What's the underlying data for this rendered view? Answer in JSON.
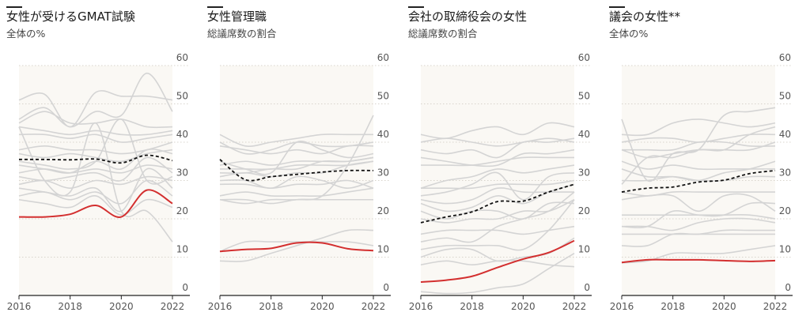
{
  "chart_data": [
    {
      "type": "line",
      "title": "女性が受けるGMAT試験",
      "subtitle": "全体の%",
      "x": [
        2016,
        2017,
        2018,
        2019,
        2020,
        2021,
        2022
      ],
      "xticks": [
        "2016",
        "2018",
        "2020",
        "2022"
      ],
      "yticks": [
        "0",
        "10",
        "20",
        "30",
        "40",
        "50",
        "60"
      ],
      "ylim": [
        0,
        60
      ],
      "highlight": [
        20.5,
        20.5,
        21.2,
        23.5,
        20.5,
        27.5,
        24
      ],
      "average": [
        35.5,
        35.5,
        35.4,
        35.6,
        34.6,
        36.6,
        35.2
      ],
      "others": [
        [
          51,
          52.5,
          44,
          53,
          52,
          52,
          51
        ],
        [
          46,
          49,
          44,
          48,
          47,
          58,
          48
        ],
        [
          45,
          48,
          45,
          45,
          46,
          44,
          44
        ],
        [
          44,
          43,
          42,
          43,
          42,
          42,
          43
        ],
        [
          42,
          42,
          41,
          42,
          40,
          41,
          42
        ],
        [
          38,
          39,
          38,
          38,
          37,
          38,
          40
        ],
        [
          37,
          36,
          37,
          36,
          35,
          37,
          38
        ],
        [
          34,
          33,
          32,
          35,
          33,
          38,
          37
        ],
        [
          32,
          33,
          32,
          33,
          32,
          34,
          33
        ],
        [
          31,
          30,
          31,
          32,
          30,
          36,
          32
        ],
        [
          29,
          30,
          28,
          30,
          29,
          31,
          30
        ],
        [
          28,
          27,
          26,
          28,
          22,
          33,
          28
        ],
        [
          26,
          27,
          25,
          27,
          24,
          30,
          26
        ],
        [
          25,
          24,
          23,
          26,
          21,
          25,
          23
        ],
        [
          44,
          30,
          27,
          45,
          22,
          22,
          14
        ],
        [
          35,
          34,
          33,
          35,
          46,
          30,
          31
        ]
      ]
    },
    {
      "type": "line",
      "title": "女性管理職",
      "subtitle": "総議席数の割合",
      "x": [
        2016,
        2017,
        2018,
        2019,
        2020,
        2021,
        2022
      ],
      "xticks": [
        "2016",
        "2018",
        "2020",
        "2022"
      ],
      "yticks": [
        "0",
        "10",
        "20",
        "30",
        "40",
        "50",
        "60"
      ],
      "ylim": [
        0,
        60
      ],
      "highlight": [
        11.5,
        12,
        12.3,
        13.7,
        13.7,
        12.2,
        11.7
      ],
      "average": [
        35.5,
        30.2,
        31,
        31.6,
        32.2,
        32.6,
        32.6
      ],
      "others": [
        [
          42,
          39,
          40,
          41,
          42,
          42,
          42
        ],
        [
          40,
          37,
          38,
          40,
          39,
          39,
          40
        ],
        [
          39,
          38,
          37,
          38,
          37,
          39,
          39
        ],
        [
          35,
          33,
          32,
          40,
          38,
          36,
          37
        ],
        [
          34,
          35,
          34,
          35,
          35,
          35,
          36
        ],
        [
          33,
          33,
          33,
          34,
          34,
          34,
          35
        ],
        [
          32,
          32,
          33,
          33,
          35,
          35,
          36
        ],
        [
          31,
          32,
          31,
          32,
          32,
          34,
          35
        ],
        [
          30,
          30,
          28,
          31,
          30,
          28,
          30
        ],
        [
          29,
          29,
          28,
          29,
          29,
          30,
          28
        ],
        [
          26,
          27,
          26,
          26,
          26,
          27,
          28
        ],
        [
          25,
          24,
          25,
          25,
          26,
          34,
          47
        ],
        [
          25,
          25,
          24,
          25,
          25,
          25,
          25
        ],
        [
          11.5,
          14,
          14,
          14,
          14,
          14,
          13
        ],
        [
          9,
          9,
          11,
          13,
          15,
          17,
          17
        ]
      ]
    },
    {
      "type": "line",
      "title": "会社の取締役会の女性",
      "subtitle": "総議席数の割合",
      "x": [
        2016,
        2017,
        2018,
        2019,
        2020,
        2021,
        2022
      ],
      "xticks": [
        "2016",
        "2018",
        "2020",
        "2022"
      ],
      "yticks": [
        "0",
        "10",
        "20",
        "30",
        "40",
        "50",
        "60"
      ],
      "ylim": [
        0,
        60
      ],
      "highlight": [
        3.5,
        4,
        5,
        7.3,
        9.5,
        11.2,
        14.3
      ],
      "average": [
        19,
        20.5,
        21.8,
        24.5,
        24.6,
        27,
        29
      ],
      "others": [
        [
          42,
          41,
          43,
          44,
          42,
          45,
          44
        ],
        [
          40,
          41,
          40,
          39,
          40,
          41,
          40
        ],
        [
          38,
          37,
          38,
          36,
          40,
          40,
          41
        ],
        [
          36,
          35,
          34,
          34,
          37,
          37,
          38
        ],
        [
          34,
          34,
          34,
          35,
          36,
          36,
          36
        ],
        [
          28,
          30,
          31,
          33,
          32,
          33,
          34
        ],
        [
          28,
          28,
          28,
          29,
          29,
          29,
          30
        ],
        [
          26,
          27,
          29,
          32,
          25,
          31,
          32
        ],
        [
          25,
          24,
          25,
          28,
          27,
          27,
          27
        ],
        [
          24,
          22,
          23,
          26,
          24,
          27,
          29
        ],
        [
          22,
          20,
          22,
          22,
          20,
          24,
          24
        ],
        [
          20,
          19,
          20,
          20,
          22,
          22,
          25
        ],
        [
          16,
          17,
          17,
          17,
          16,
          17,
          18
        ],
        [
          14,
          15,
          14,
          18,
          20,
          22,
          27
        ],
        [
          12,
          13,
          13,
          13,
          12,
          17,
          25
        ],
        [
          10,
          12,
          12,
          9,
          10,
          11,
          15
        ],
        [
          8,
          9,
          8,
          9,
          9,
          8,
          7.5
        ],
        [
          1,
          0.5,
          0.8,
          2,
          3,
          7,
          11
        ]
      ]
    },
    {
      "type": "line",
      "title": "議会の女性**",
      "subtitle": "全体の%",
      "x": [
        2016,
        2017,
        2018,
        2019,
        2020,
        2021,
        2022
      ],
      "xticks": [
        "2016",
        "2018",
        "2020",
        "2022"
      ],
      "yticks": [
        "0",
        "10",
        "20",
        "30",
        "40",
        "50",
        "60"
      ],
      "ylim": [
        0,
        60
      ],
      "highlight": [
        8.6,
        9.3,
        9.3,
        9.3,
        9.1,
        8.9,
        9.1
      ],
      "average": [
        27,
        28,
        28.3,
        29.6,
        30.1,
        31.8,
        32.6
      ],
      "others": [
        [
          46,
          30,
          37,
          38,
          47,
          48,
          49
        ],
        [
          42,
          42,
          45,
          46,
          45,
          44,
          45
        ],
        [
          40,
          41,
          41,
          40,
          41,
          42,
          42
        ],
        [
          38,
          38,
          38,
          40,
          40,
          39,
          39
        ],
        [
          38,
          36,
          37,
          38,
          38,
          38,
          40
        ],
        [
          35,
          33,
          34,
          33,
          33,
          33,
          33
        ],
        [
          33,
          31,
          31,
          30,
          32,
          33,
          35
        ],
        [
          30,
          30,
          31,
          30,
          30,
          31,
          31
        ],
        [
          29,
          36,
          36,
          38,
          38,
          42,
          44
        ],
        [
          27,
          26,
          27,
          27,
          27,
          27,
          27
        ],
        [
          25,
          26,
          26,
          22,
          26,
          26,
          22
        ],
        [
          21,
          21,
          21,
          21,
          21,
          21,
          20
        ],
        [
          18,
          18,
          22,
          21,
          21,
          24,
          24
        ],
        [
          18,
          18,
          17,
          19,
          20,
          20,
          19
        ],
        [
          16,
          16,
          16,
          16,
          16,
          16,
          16
        ],
        [
          13,
          13,
          16,
          16,
          17,
          17,
          17
        ],
        [
          8.5,
          9,
          11,
          11,
          11,
          12,
          13
        ]
      ]
    }
  ],
  "colors": {
    "highlight": "#d32f2f",
    "average": "#111111",
    "others": "#d4d4d4",
    "plot_bg": "#faf8f4"
  }
}
